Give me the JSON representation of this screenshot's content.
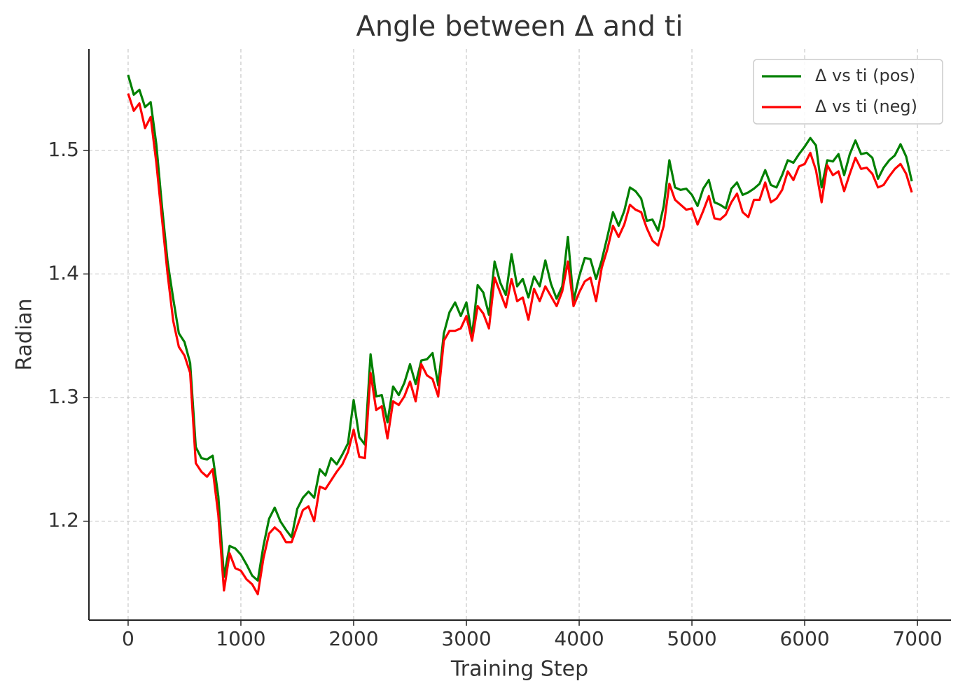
{
  "chart_data": {
    "type": "line",
    "title": "Angle between Δ and ti",
    "x_label": "Training Step",
    "y_label": "Radian",
    "x": [
      0,
      50,
      100,
      150,
      200,
      250,
      300,
      350,
      400,
      450,
      500,
      550,
      600,
      650,
      700,
      750,
      800,
      850,
      900,
      950,
      1000,
      1050,
      1100,
      1150,
      1200,
      1250,
      1300,
      1350,
      1400,
      1450,
      1500,
      1550,
      1600,
      1650,
      1700,
      1750,
      1800,
      1850,
      1900,
      1950,
      2000,
      2050,
      2100,
      2150,
      2200,
      2250,
      2300,
      2350,
      2400,
      2450,
      2500,
      2550,
      2600,
      2650,
      2700,
      2750,
      2800,
      2850,
      2900,
      2950,
      3000,
      3050,
      3100,
      3150,
      3200,
      3250,
      3300,
      3350,
      3400,
      3450,
      3500,
      3550,
      3600,
      3650,
      3700,
      3750,
      3800,
      3850,
      3900,
      3950,
      4000,
      4050,
      4100,
      4150,
      4200,
      4250,
      4300,
      4350,
      4400,
      4450,
      4500,
      4550,
      4600,
      4650,
      4700,
      4750,
      4800,
      4850,
      4900,
      4950,
      5000,
      5050,
      5100,
      5150,
      5200,
      5250,
      5300,
      5350,
      5400,
      5450,
      5500,
      5550,
      5600,
      5650,
      5700,
      5750,
      5800,
      5850,
      5900,
      5950,
      6000,
      6050,
      6100,
      6150,
      6200,
      6250,
      6300,
      6350,
      6400,
      6450,
      6500,
      6550,
      6600,
      6650,
      6700,
      6750,
      6800,
      6850,
      6900,
      6950
    ],
    "series": [
      {
        "name": "Δ vs ti (pos)",
        "color": "#008000",
        "values": [
          1.561,
          1.545,
          1.549,
          1.535,
          1.539,
          1.505,
          1.455,
          1.41,
          1.38,
          1.352,
          1.345,
          1.328,
          1.26,
          1.251,
          1.25,
          1.253,
          1.22,
          1.155,
          1.18,
          1.178,
          1.173,
          1.165,
          1.156,
          1.152,
          1.18,
          1.202,
          1.211,
          1.2,
          1.193,
          1.187,
          1.21,
          1.219,
          1.224,
          1.219,
          1.242,
          1.237,
          1.251,
          1.246,
          1.254,
          1.263,
          1.298,
          1.268,
          1.262,
          1.335,
          1.301,
          1.302,
          1.28,
          1.309,
          1.302,
          1.312,
          1.327,
          1.311,
          1.33,
          1.331,
          1.336,
          1.31,
          1.352,
          1.369,
          1.377,
          1.366,
          1.377,
          1.35,
          1.391,
          1.385,
          1.367,
          1.41,
          1.393,
          1.383,
          1.416,
          1.39,
          1.396,
          1.381,
          1.398,
          1.39,
          1.411,
          1.392,
          1.38,
          1.39,
          1.43,
          1.378,
          1.398,
          1.413,
          1.412,
          1.396,
          1.411,
          1.43,
          1.45,
          1.439,
          1.451,
          1.47,
          1.467,
          1.461,
          1.443,
          1.444,
          1.435,
          1.455,
          1.492,
          1.47,
          1.468,
          1.469,
          1.464,
          1.455,
          1.469,
          1.476,
          1.458,
          1.456,
          1.453,
          1.469,
          1.474,
          1.464,
          1.466,
          1.469,
          1.473,
          1.484,
          1.472,
          1.47,
          1.48,
          1.492,
          1.49,
          1.497,
          1.503,
          1.51,
          1.504,
          1.47,
          1.492,
          1.491,
          1.497,
          1.48,
          1.497,
          1.508,
          1.497,
          1.498,
          1.494,
          1.477,
          1.486,
          1.492,
          1.496,
          1.505,
          1.495,
          1.475
        ]
      },
      {
        "name": "Δ vs ti (neg)",
        "color": "#ff0000",
        "values": [
          1.546,
          1.532,
          1.538,
          1.518,
          1.527,
          1.49,
          1.445,
          1.4,
          1.362,
          1.341,
          1.334,
          1.32,
          1.247,
          1.24,
          1.236,
          1.242,
          1.205,
          1.144,
          1.174,
          1.162,
          1.16,
          1.153,
          1.149,
          1.141,
          1.17,
          1.19,
          1.195,
          1.191,
          1.183,
          1.183,
          1.196,
          1.209,
          1.212,
          1.2,
          1.228,
          1.226,
          1.233,
          1.24,
          1.246,
          1.256,
          1.274,
          1.252,
          1.251,
          1.32,
          1.29,
          1.293,
          1.267,
          1.297,
          1.294,
          1.301,
          1.313,
          1.297,
          1.327,
          1.318,
          1.315,
          1.301,
          1.346,
          1.354,
          1.354,
          1.356,
          1.366,
          1.346,
          1.374,
          1.368,
          1.356,
          1.397,
          1.385,
          1.373,
          1.396,
          1.378,
          1.381,
          1.363,
          1.388,
          1.378,
          1.39,
          1.382,
          1.374,
          1.386,
          1.41,
          1.374,
          1.385,
          1.394,
          1.397,
          1.378,
          1.405,
          1.42,
          1.439,
          1.43,
          1.44,
          1.456,
          1.452,
          1.45,
          1.437,
          1.427,
          1.423,
          1.439,
          1.473,
          1.46,
          1.456,
          1.452,
          1.453,
          1.44,
          1.451,
          1.463,
          1.445,
          1.444,
          1.448,
          1.458,
          1.465,
          1.45,
          1.446,
          1.46,
          1.46,
          1.474,
          1.458,
          1.461,
          1.468,
          1.483,
          1.476,
          1.487,
          1.489,
          1.498,
          1.484,
          1.458,
          1.488,
          1.48,
          1.483,
          1.467,
          1.481,
          1.494,
          1.485,
          1.486,
          1.481,
          1.47,
          1.472,
          1.479,
          1.485,
          1.489,
          1.481,
          1.466
        ]
      }
    ],
    "xlim": [
      -347.5,
      7297.5
    ],
    "xticks": [
      0,
      1000,
      2000,
      3000,
      4000,
      5000,
      6000,
      7000
    ],
    "ylim": [
      1.12,
      1.582
    ],
    "yticks": [
      1.2,
      1.3,
      1.4,
      1.5
    ],
    "grid": true,
    "legend": "upper right"
  }
}
